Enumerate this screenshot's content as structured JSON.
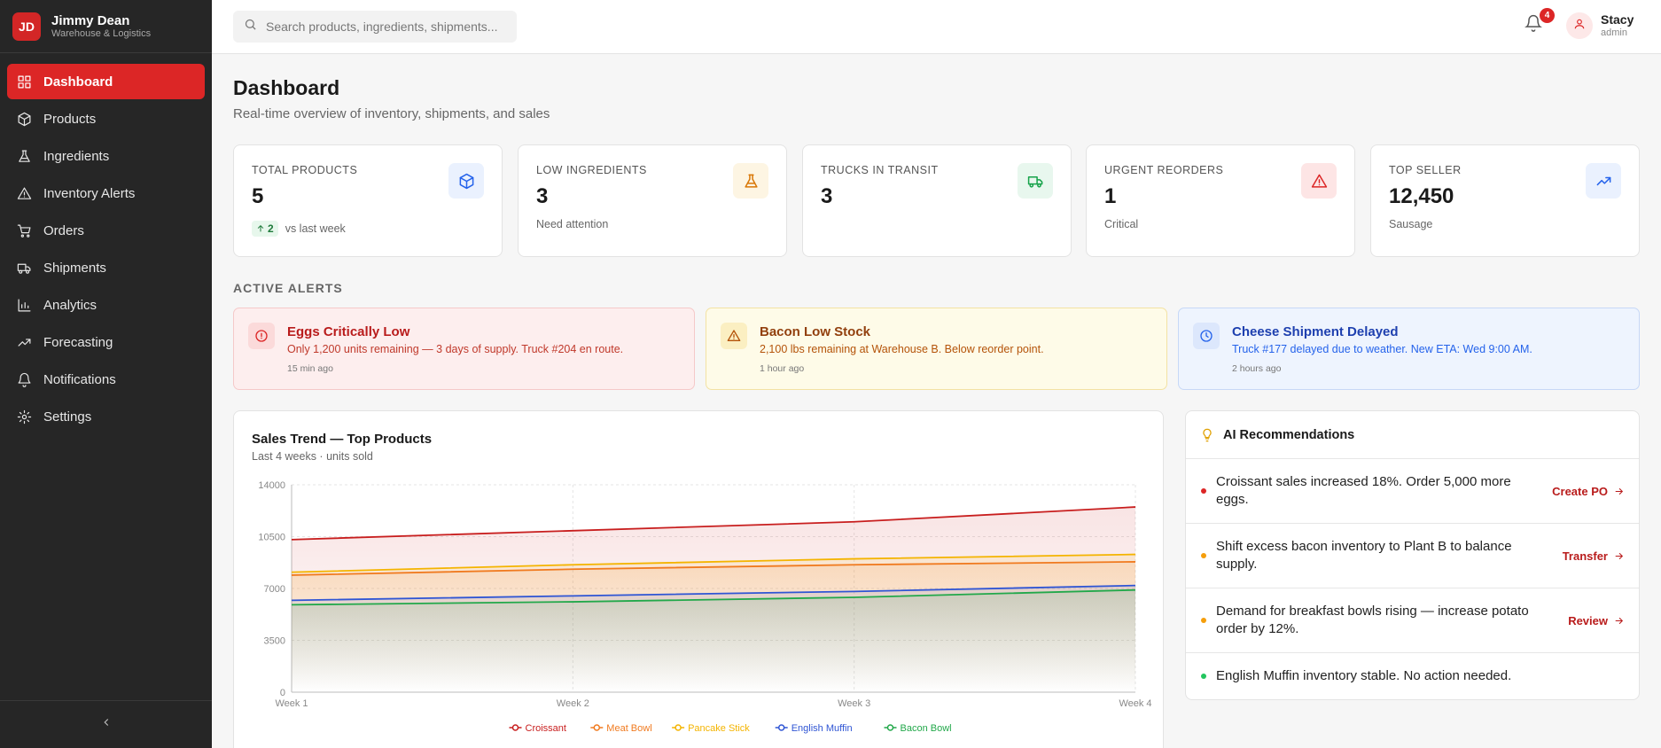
{
  "brand": {
    "initials": "JD",
    "name": "Jimmy Dean",
    "subtitle": "Warehouse & Logistics"
  },
  "sidebar": {
    "items": [
      {
        "label": "Dashboard",
        "icon": "grid-icon",
        "active": true
      },
      {
        "label": "Products",
        "icon": "package-icon"
      },
      {
        "label": "Ingredients",
        "icon": "flask-icon"
      },
      {
        "label": "Inventory Alerts",
        "icon": "alert-triangle-icon"
      },
      {
        "label": "Orders",
        "icon": "cart-icon"
      },
      {
        "label": "Shipments",
        "icon": "truck-icon"
      },
      {
        "label": "Analytics",
        "icon": "bar-chart-icon"
      },
      {
        "label": "Forecasting",
        "icon": "trending-up-icon"
      },
      {
        "label": "Notifications",
        "icon": "bell-icon"
      },
      {
        "label": "Settings",
        "icon": "gear-icon"
      }
    ]
  },
  "header": {
    "search_placeholder": "Search products, ingredients, shipments...",
    "notification_count": "4",
    "user_name": "Stacy",
    "user_role": "admin"
  },
  "page": {
    "title": "Dashboard",
    "subtitle": "Real-time overview of inventory, shipments, and sales"
  },
  "stats": [
    {
      "label": "TOTAL PRODUCTS",
      "value": "5",
      "trend_value": "2",
      "trend_note": "vs last week",
      "icon": "package-icon",
      "icon_color": "#2563eb",
      "icon_bg": "#eaf1fe"
    },
    {
      "label": "LOW INGREDIENTS",
      "value": "3",
      "note": "Need attention",
      "icon": "flask-icon",
      "icon_color": "#d97706",
      "icon_bg": "#fdf5e3"
    },
    {
      "label": "TRUCKS IN TRANSIT",
      "value": "3",
      "icon": "truck-icon",
      "icon_color": "#16a34a",
      "icon_bg": "#e8f7ee"
    },
    {
      "label": "URGENT REORDERS",
      "value": "1",
      "note": "Critical",
      "icon": "alert-triangle-icon",
      "icon_color": "#dc2626",
      "icon_bg": "#fde5e5"
    },
    {
      "label": "TOP SELLER",
      "value": "12,450",
      "note": "Sausage",
      "icon": "trending-up-icon",
      "icon_color": "#2563eb",
      "icon_bg": "#eaf1fe"
    }
  ],
  "alerts_section_title": "ACTIVE ALERTS",
  "alerts": [
    {
      "title": "Eggs Critically Low",
      "desc": "Only 1,200 units remaining — 3 days of supply. Truck #204 en route.",
      "time": "15 min ago",
      "icon": "alert-circle-icon",
      "bg": "#fdeeee",
      "border": "#f5c9c9",
      "title_color": "#b91c1c",
      "desc_color": "#c0392b",
      "icon_color": "#dc2626",
      "icon_bg": "#fbdada"
    },
    {
      "title": "Bacon Low Stock",
      "desc": "2,100 lbs remaining at Warehouse B. Below reorder point.",
      "time": "1 hour ago",
      "icon": "alert-triangle-icon",
      "bg": "#fefbe8",
      "border": "#f3e2a3",
      "title_color": "#92400e",
      "desc_color": "#b45309",
      "icon_color": "#b45309",
      "icon_bg": "#fbefc2"
    },
    {
      "title": "Cheese Shipment Delayed",
      "desc": "Truck #177 delayed due to weather. New ETA: Wed 9:00 AM.",
      "time": "2 hours ago",
      "icon": "clock-icon",
      "bg": "#eef4fe",
      "border": "#c7d8f7",
      "title_color": "#1e40af",
      "desc_color": "#2563eb",
      "icon_color": "#2563eb",
      "icon_bg": "#dce7fc"
    }
  ],
  "chart": {
    "title": "Sales Trend — Top Products",
    "subtitle": "Last 4 weeks · units sold"
  },
  "chart_data": {
    "type": "area",
    "x": [
      "Week 1",
      "Week 2",
      "Week 3",
      "Week 4"
    ],
    "ylim": [
      0,
      14000
    ],
    "yticks": [
      0,
      3500,
      7000,
      10500,
      14000
    ],
    "grid": true,
    "legend": "bottom",
    "series": [
      {
        "name": "Croissant",
        "color": "#c81e1e",
        "values": [
          10300,
          10900,
          11500,
          12500
        ]
      },
      {
        "name": "Meat Bowl",
        "color": "#f07a1f",
        "values": [
          7900,
          8300,
          8600,
          8800
        ]
      },
      {
        "name": "Pancake Stick",
        "color": "#f4b400",
        "values": [
          8100,
          8600,
          9000,
          9300
        ]
      },
      {
        "name": "English Muffin",
        "color": "#2f55d4",
        "values": [
          6200,
          6500,
          6800,
          7200
        ]
      },
      {
        "name": "Bacon Bowl",
        "color": "#22a84a",
        "values": [
          5900,
          6100,
          6400,
          6900
        ]
      }
    ]
  },
  "ai": {
    "title": "AI Recommendations",
    "items": [
      {
        "text": "Croissant sales increased 18%. Order 5,000 more eggs.",
        "action": "Create PO",
        "dot": "#dc2626"
      },
      {
        "text": "Shift excess bacon inventory to Plant B to balance supply.",
        "action": "Transfer",
        "dot": "#f59e0b"
      },
      {
        "text": "Demand for breakfast bowls rising — increase potato order by 12%.",
        "action": "Review",
        "dot": "#f59e0b"
      },
      {
        "text": "English Muffin inventory stable. No action needed.",
        "action": "",
        "dot": "#22c55e"
      }
    ]
  }
}
